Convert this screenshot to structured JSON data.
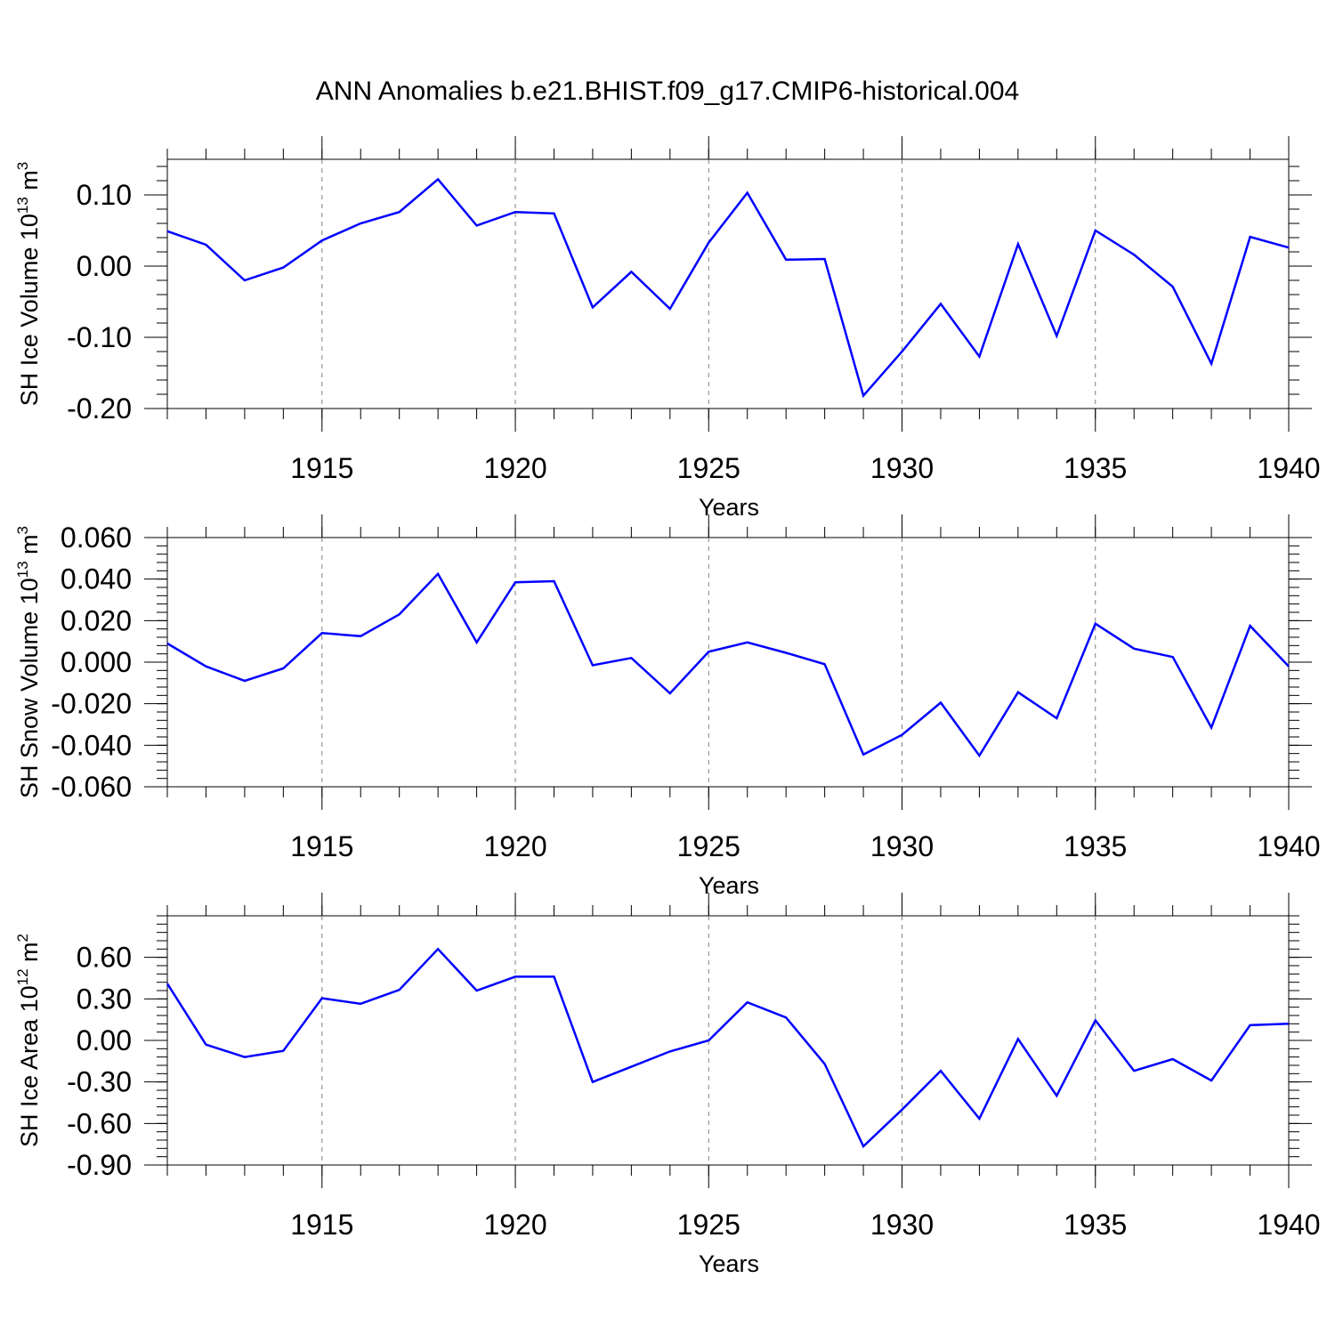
{
  "title": "ANN Anomalies b.e21.BHIST.f09_g17.CMIP6-historical.004",
  "line_color": "#0000ff",
  "chart_data": [
    {
      "type": "line",
      "ylabel": "SH Ice Volume 10",
      "ylabel_exp": "13",
      "ylabel_unit": "m",
      "ylabel_unit_exp": "3",
      "xlabel": "Years",
      "xlim": [
        1911,
        1940
      ],
      "ylim": [
        -0.2,
        0.15
      ],
      "yticks": [
        "0.10",
        "0.00",
        "-0.10",
        "-0.20"
      ],
      "yticks_values": [
        0.1,
        0.0,
        -0.1,
        -0.2
      ],
      "xticks": [
        "1915",
        "1920",
        "1925",
        "1930",
        "1935",
        "1940"
      ],
      "x": [
        1911,
        1912,
        1913,
        1914,
        1915,
        1916,
        1917,
        1918,
        1919,
        1920,
        1921,
        1922,
        1923,
        1924,
        1925,
        1926,
        1927,
        1928,
        1929,
        1930,
        1931,
        1932,
        1933,
        1934,
        1935,
        1936,
        1937,
        1938,
        1939,
        1940
      ],
      "values": [
        0.049,
        0.03,
        -0.02,
        -0.002,
        0.036,
        0.06,
        0.076,
        0.122,
        0.057,
        0.076,
        0.074,
        -0.058,
        -0.008,
        -0.06,
        0.033,
        0.103,
        0.009,
        0.01,
        -0.182,
        -0.12,
        -0.053,
        -0.127,
        0.031,
        -0.098,
        0.05,
        0.016,
        -0.029,
        -0.137,
        0.041,
        0.026
      ]
    },
    {
      "type": "line",
      "ylabel": "SH Snow Volume 10",
      "ylabel_exp": "13",
      "ylabel_unit": "m",
      "ylabel_unit_exp": "3",
      "xlabel": "Years",
      "xlim": [
        1911,
        1940
      ],
      "ylim": [
        -0.06,
        0.06
      ],
      "yticks": [
        "0.060",
        "0.040",
        "0.020",
        "0.000",
        "-0.020",
        "-0.040",
        "-0.060"
      ],
      "yticks_values": [
        0.06,
        0.04,
        0.02,
        0.0,
        -0.02,
        -0.04,
        -0.06
      ],
      "xticks": [
        "1915",
        "1920",
        "1925",
        "1930",
        "1935",
        "1940"
      ],
      "x": [
        1911,
        1912,
        1913,
        1914,
        1915,
        1916,
        1917,
        1918,
        1919,
        1920,
        1921,
        1922,
        1923,
        1924,
        1925,
        1926,
        1927,
        1928,
        1929,
        1930,
        1931,
        1932,
        1933,
        1934,
        1935,
        1936,
        1937,
        1938,
        1939,
        1940
      ],
      "values": [
        0.009,
        -0.002,
        -0.009,
        -0.003,
        0.014,
        0.0125,
        0.023,
        0.0425,
        0.0095,
        0.0385,
        0.039,
        -0.0015,
        0.002,
        -0.015,
        0.005,
        0.0095,
        0.0045,
        -0.001,
        -0.0445,
        -0.035,
        -0.0195,
        -0.045,
        -0.0145,
        -0.027,
        0.0185,
        0.0065,
        0.0025,
        -0.0315,
        0.0175,
        -0.002
      ]
    },
    {
      "type": "line",
      "ylabel": "SH Ice Area 10",
      "ylabel_exp": "12",
      "ylabel_unit": "m",
      "ylabel_unit_exp": "2",
      "xlabel": "Years",
      "xlim": [
        1911,
        1940
      ],
      "ylim": [
        -0.9,
        0.9
      ],
      "yticks": [
        "0.60",
        "0.30",
        "0.00",
        "-0.30",
        "-0.60",
        "-0.90"
      ],
      "yticks_values": [
        0.6,
        0.3,
        0.0,
        -0.3,
        -0.6,
        -0.9
      ],
      "xticks": [
        "1915",
        "1920",
        "1925",
        "1930",
        "1935",
        "1940"
      ],
      "x": [
        1911,
        1912,
        1913,
        1914,
        1915,
        1916,
        1917,
        1918,
        1919,
        1920,
        1921,
        1922,
        1923,
        1924,
        1925,
        1926,
        1927,
        1928,
        1929,
        1930,
        1931,
        1932,
        1933,
        1934,
        1935,
        1936,
        1937,
        1938,
        1939,
        1940
      ],
      "values": [
        0.41,
        -0.03,
        -0.12,
        -0.075,
        0.305,
        0.265,
        0.365,
        0.66,
        0.36,
        0.46,
        0.46,
        -0.3,
        -0.19,
        -0.08,
        0.0,
        0.275,
        0.165,
        -0.17,
        -0.765,
        -0.5,
        -0.22,
        -0.565,
        0.01,
        -0.4,
        0.145,
        -0.22,
        -0.135,
        -0.29,
        0.11,
        0.12
      ]
    }
  ]
}
